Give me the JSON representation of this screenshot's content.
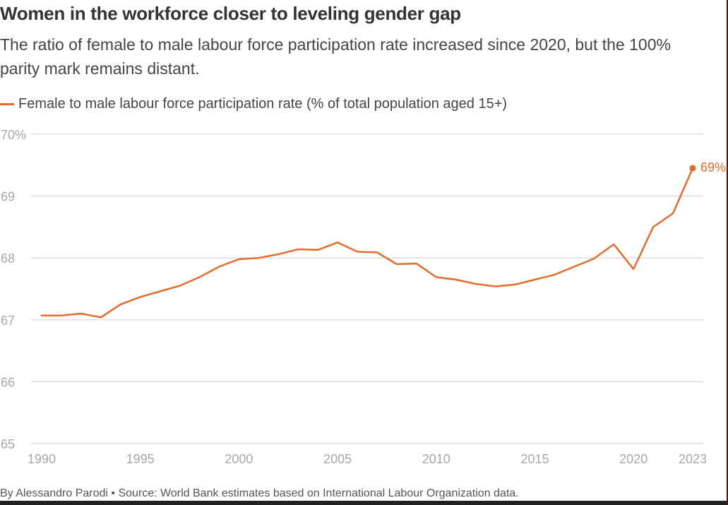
{
  "title": "Women in the workforce closer to leveling gender gap",
  "subtitle": "The ratio of female to male labour force participation rate increased since 2020, but the 100% parity mark remains distant.",
  "source": "By Alessandro Parodi • Source: World Bank estimates based on International Labour Organization data.",
  "chart_data": {
    "type": "line",
    "title": "Women in the workforce closer to leveling gender gap",
    "subtitle": "The ratio of female to male labour force participation rate increased since 2020, but the 100% parity mark remains distant.",
    "xlabel": "",
    "ylabel": "",
    "ylim": [
      65,
      70
    ],
    "xlim": [
      1990,
      2023
    ],
    "grid": true,
    "legend_position": "top-left",
    "y_ticks": [
      {
        "value": 65,
        "label": "65"
      },
      {
        "value": 66,
        "label": "66"
      },
      {
        "value": 67,
        "label": "67"
      },
      {
        "value": 68,
        "label": "68"
      },
      {
        "value": 69,
        "label": "69"
      },
      {
        "value": 70,
        "label": "70%"
      }
    ],
    "x_ticks": [
      {
        "value": 1990,
        "label": "1990"
      },
      {
        "value": 1995,
        "label": "1995"
      },
      {
        "value": 2000,
        "label": "2000"
      },
      {
        "value": 2005,
        "label": "2005"
      },
      {
        "value": 2010,
        "label": "2010"
      },
      {
        "value": 2015,
        "label": "2015"
      },
      {
        "value": 2020,
        "label": "2020"
      },
      {
        "value": 2023,
        "label": "2023"
      }
    ],
    "series": [
      {
        "name": "Female to male labour force participation rate (% of total population aged 15+)",
        "color": "#e06c2e",
        "end_label": "69%",
        "x": [
          1990,
          1991,
          1992,
          1993,
          1994,
          1995,
          1996,
          1997,
          1998,
          1999,
          2000,
          2001,
          2002,
          2003,
          2004,
          2005,
          2006,
          2007,
          2008,
          2009,
          2010,
          2011,
          2012,
          2013,
          2014,
          2015,
          2016,
          2017,
          2018,
          2019,
          2020,
          2021,
          2022,
          2023
        ],
        "values": [
          67.07,
          67.07,
          67.1,
          67.04,
          67.25,
          67.37,
          67.46,
          67.55,
          67.69,
          67.86,
          67.98,
          68.0,
          68.06,
          68.14,
          68.13,
          68.25,
          68.1,
          68.09,
          67.9,
          67.91,
          67.69,
          67.65,
          67.58,
          67.54,
          67.57,
          67.65,
          67.73,
          67.86,
          67.99,
          68.22,
          67.82,
          68.5,
          68.72,
          69.45
        ]
      }
    ]
  }
}
